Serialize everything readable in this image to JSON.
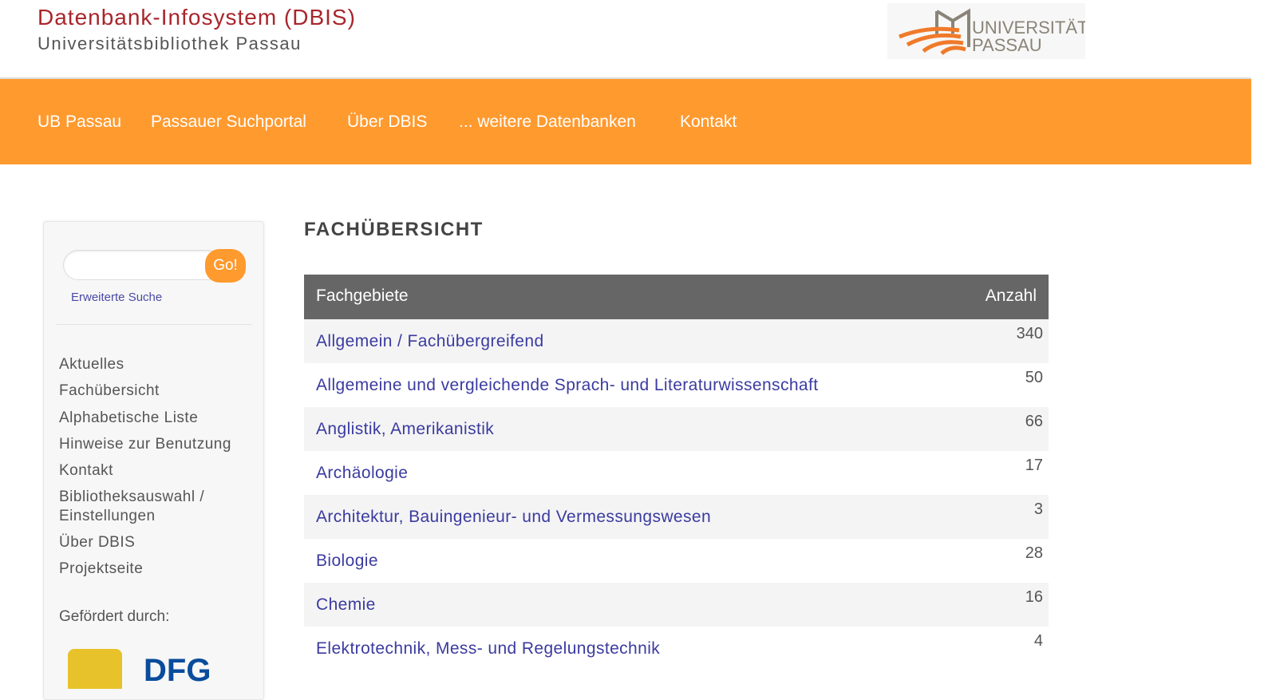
{
  "header": {
    "title": "Datenbank-Infosystem (DBIS)",
    "subtitle": "Universitätsbibliothek Passau",
    "logo_text": "UNIVERSITÄT PASSAU"
  },
  "nav": [
    "UB Passau",
    "Passauer Suchportal",
    "Über DBIS",
    "... weitere Datenbanken",
    "Kontakt"
  ],
  "sidebar": {
    "search_value": "",
    "go_label": "Go!",
    "advanced_search": "Erweiterte Suche",
    "menu": [
      "Aktuelles",
      "Fachübersicht",
      "Alphabetische Liste",
      "Hinweise zur Benutzung",
      "Kontakt",
      "Bibliotheksauswahl / Einstellungen",
      "Über DBIS",
      "Projektseite"
    ],
    "funded_by": "Gefördert durch:",
    "sponsor_logos": [
      "Bayern coat of arms",
      "DFG"
    ]
  },
  "main": {
    "heading": "FACHÜBERSICHT",
    "columns": [
      "Fachgebiete",
      "Anzahl"
    ],
    "rows": [
      {
        "name": "Allgemein / Fachübergreifend",
        "count": "340"
      },
      {
        "name": "Allgemeine und vergleichende Sprach- und Literaturwissenschaft",
        "count": "50"
      },
      {
        "name": "Anglistik, Amerikanistik",
        "count": "66"
      },
      {
        "name": "Archäologie",
        "count": "17"
      },
      {
        "name": "Architektur, Bauingenieur- und Vermessungswesen",
        "count": "3"
      },
      {
        "name": "Biologie",
        "count": "28"
      },
      {
        "name": "Chemie",
        "count": "16"
      },
      {
        "name": "Elektrotechnik, Mess- und Regelungstechnik",
        "count": "4"
      }
    ]
  },
  "colors": {
    "accent": "#ff9a2f",
    "title": "#a8262c",
    "link": "#3b3ba0",
    "table_header": "#666666"
  }
}
